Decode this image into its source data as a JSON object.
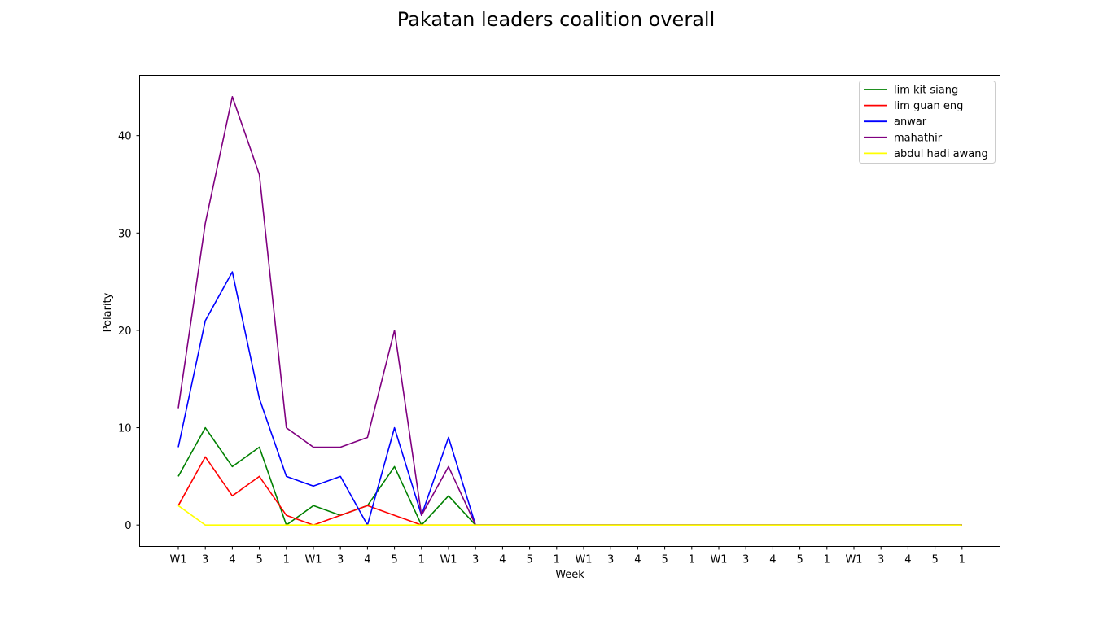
{
  "chart_data": {
    "type": "line",
    "title": "Pakatan leaders coalition overall",
    "xlabel": "Week",
    "ylabel": "Polarity",
    "x": [
      "W1",
      "3",
      "4",
      "5",
      "1",
      "W1",
      "3",
      "4",
      "5",
      "1",
      "W1",
      "3",
      "4",
      "5",
      "1",
      "W1",
      "3",
      "4",
      "5",
      "1",
      "W1",
      "3",
      "4",
      "5",
      "1",
      "W1",
      "3",
      "4",
      "5",
      "1"
    ],
    "ylim": [
      -2.2,
      46.2
    ],
    "yticks": [
      0,
      10,
      20,
      30,
      40
    ],
    "grid": false,
    "legend_position": "top-right",
    "series": [
      {
        "name": "lim kit siang",
        "color": "#008000",
        "values": [
          5,
          10,
          6,
          8,
          0,
          2,
          1,
          2,
          6,
          0,
          3,
          0,
          0,
          0,
          0,
          0,
          0,
          0,
          0,
          0,
          0,
          0,
          0,
          0,
          0,
          0,
          0,
          0,
          0,
          0
        ]
      },
      {
        "name": "lim guan eng",
        "color": "#ff0000",
        "values": [
          2,
          7,
          3,
          5,
          1,
          0,
          1,
          2,
          1,
          0,
          0,
          0,
          0,
          0,
          0,
          0,
          0,
          0,
          0,
          0,
          0,
          0,
          0,
          0,
          0,
          0,
          0,
          0,
          0,
          0
        ]
      },
      {
        "name": "anwar",
        "color": "#0000ff",
        "values": [
          8,
          21,
          26,
          13,
          5,
          4,
          5,
          0,
          10,
          1,
          9,
          0,
          0,
          0,
          0,
          0,
          0,
          0,
          0,
          0,
          0,
          0,
          0,
          0,
          0,
          0,
          0,
          0,
          0,
          0
        ]
      },
      {
        "name": "mahathir",
        "color": "#800080",
        "values": [
          12,
          31,
          44,
          36,
          10,
          8,
          8,
          9,
          20,
          1,
          6,
          0,
          0,
          0,
          0,
          0,
          0,
          0,
          0,
          0,
          0,
          0,
          0,
          0,
          0,
          0,
          0,
          0,
          0,
          0
        ]
      },
      {
        "name": "abdul hadi awang",
        "color": "#ffff00",
        "values": [
          2,
          0,
          0,
          0,
          0,
          0,
          0,
          0,
          0,
          0,
          0,
          0,
          0,
          0,
          0,
          0,
          0,
          0,
          0,
          0,
          0,
          0,
          0,
          0,
          0,
          0,
          0,
          0,
          0,
          0
        ]
      }
    ]
  }
}
